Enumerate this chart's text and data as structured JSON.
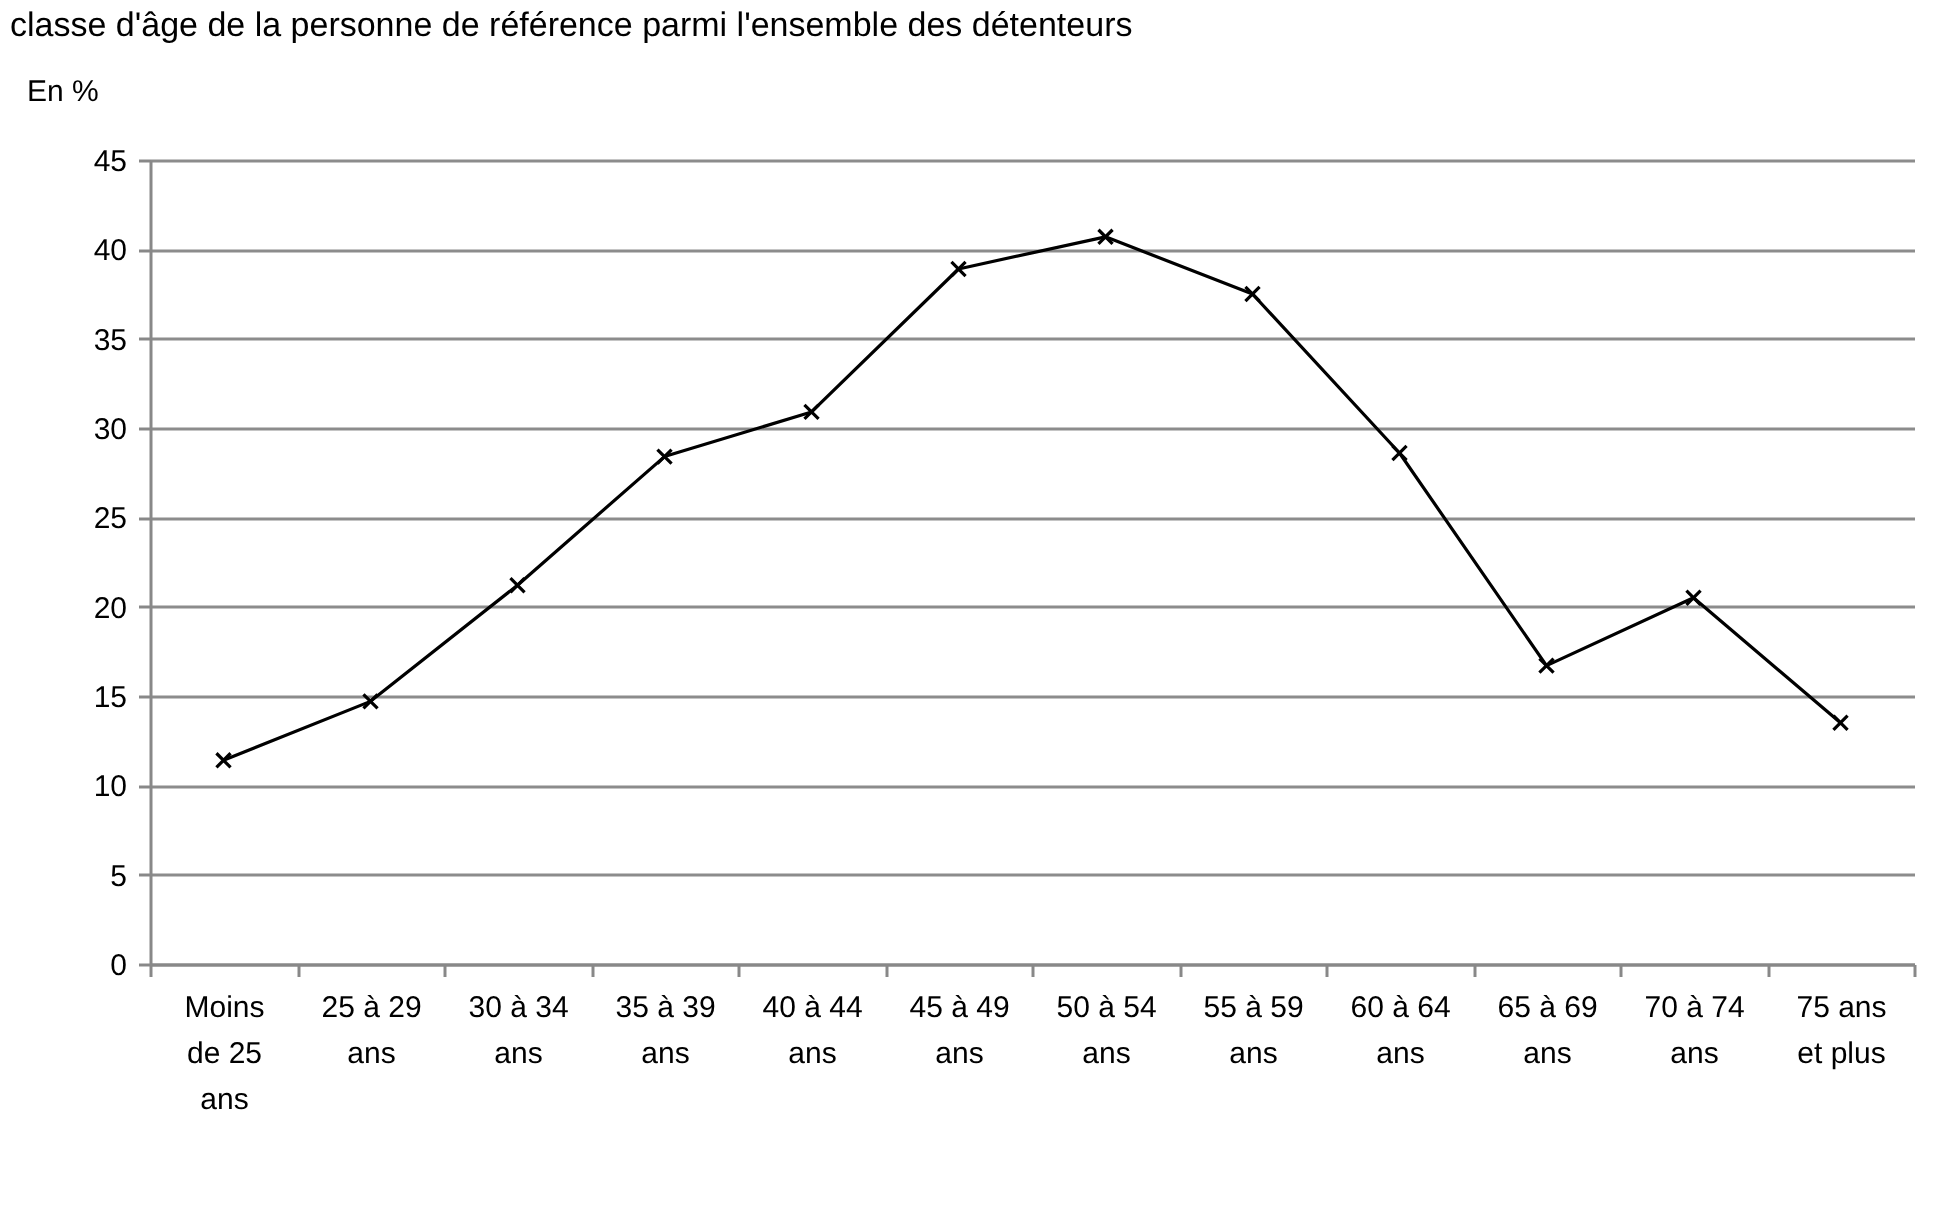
{
  "chart_data": {
    "type": "line",
    "title": "classe d'âge de la personne de référence parmi l'ensemble des détenteurs",
    "ylabel": "En %",
    "categories": [
      "Moins de 25 ans",
      "25 à 29 ans",
      "30 à 34 ans",
      "35 à 39 ans",
      "40 à 44 ans",
      "45 à 49 ans",
      "50 à 54 ans",
      "55 à 59 ans",
      "60 à 64 ans",
      "65 à 69 ans",
      "70 à 74 ans",
      "75 ans et plus"
    ],
    "series": [
      {
        "color": "#000000",
        "values": [
          11.4,
          14.7,
          21.2,
          28.4,
          30.9,
          38.9,
          40.7,
          37.5,
          28.6,
          16.7,
          20.5,
          13.5
        ]
      }
    ],
    "ylim": [
      0,
      45
    ],
    "yticks": [
      0,
      5,
      10,
      15,
      20,
      25,
      30,
      35,
      40,
      45
    ],
    "grid": "y",
    "marker": "cross",
    "line_style": "solid"
  }
}
